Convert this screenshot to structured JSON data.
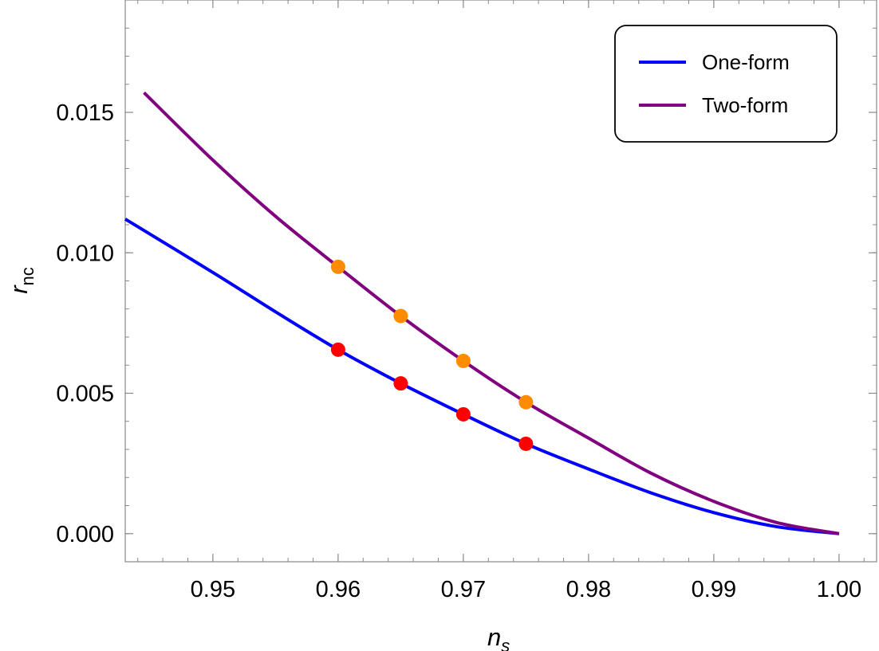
{
  "chart_data": {
    "type": "line",
    "title": "",
    "xlabel": {
      "main": "n",
      "sub": "s"
    },
    "ylabel": {
      "main": "r",
      "sub": "nc"
    },
    "xlim": [
      0.943,
      1.003
    ],
    "ylim": [
      -0.001,
      0.019
    ],
    "x_ticks": [
      0.95,
      0.96,
      0.97,
      0.98,
      0.99,
      1.0
    ],
    "x_tick_labels": [
      "0.95",
      "0.96",
      "0.97",
      "0.98",
      "0.99",
      "1.00"
    ],
    "y_ticks": [
      0.0,
      0.005,
      0.01,
      0.015
    ],
    "y_tick_labels": [
      "0.000",
      "0.005",
      "0.010",
      "0.015"
    ],
    "grid": false,
    "legend_position": "top-right",
    "series": [
      {
        "name": "One-form",
        "color": "#0000ff",
        "x": [
          0.943,
          0.95,
          0.955,
          0.96,
          0.965,
          0.97,
          0.975,
          0.98,
          0.985,
          0.99,
          0.995,
          1.0
        ],
        "y": [
          0.0112,
          0.0093,
          0.0079,
          0.00655,
          0.00535,
          0.00425,
          0.0032,
          0.0023,
          0.00145,
          0.00075,
          0.00025,
          0.0
        ]
      },
      {
        "name": "Two-form",
        "color": "#800080",
        "x": [
          0.9445,
          0.95,
          0.955,
          0.96,
          0.965,
          0.97,
          0.975,
          0.98,
          0.985,
          0.99,
          0.995,
          1.0
        ],
        "y": [
          0.0157,
          0.0133,
          0.0113,
          0.0095,
          0.00775,
          0.00615,
          0.00468,
          0.0034,
          0.00215,
          0.00115,
          0.0004,
          0.0
        ]
      }
    ],
    "markers": [
      {
        "series": "One-form",
        "color": "#ff0000",
        "x": [
          0.96,
          0.965,
          0.97,
          0.975
        ],
        "y": [
          0.00655,
          0.00535,
          0.00425,
          0.0032
        ]
      },
      {
        "series": "Two-form",
        "color": "#ff8c00",
        "x": [
          0.96,
          0.965,
          0.97,
          0.975
        ],
        "y": [
          0.0095,
          0.00775,
          0.00615,
          0.00468
        ]
      }
    ]
  }
}
